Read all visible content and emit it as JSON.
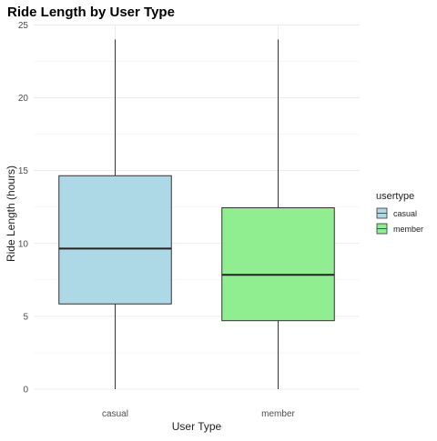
{
  "chart_data": {
    "type": "boxplot",
    "title": "Ride Length by User Type",
    "xlabel": "User Type",
    "ylabel": "Ride Length (hours)",
    "ylim": [
      0,
      25
    ],
    "y_ticks": [
      0,
      5,
      10,
      15,
      20,
      25
    ],
    "grid": true,
    "legend": {
      "title": "usertype",
      "position": "right",
      "entries": [
        "casual",
        "member"
      ]
    },
    "categories": [
      "casual",
      "member"
    ],
    "series": [
      {
        "name": "casual",
        "color": "#add8e6",
        "min": 0,
        "q1": 5.85,
        "median": 9.65,
        "q3": 14.65,
        "max": 24.0
      },
      {
        "name": "member",
        "color": "#90ee90",
        "min": 0,
        "q1": 4.7,
        "median": 7.85,
        "q3": 12.45,
        "max": 24.0
      }
    ]
  }
}
